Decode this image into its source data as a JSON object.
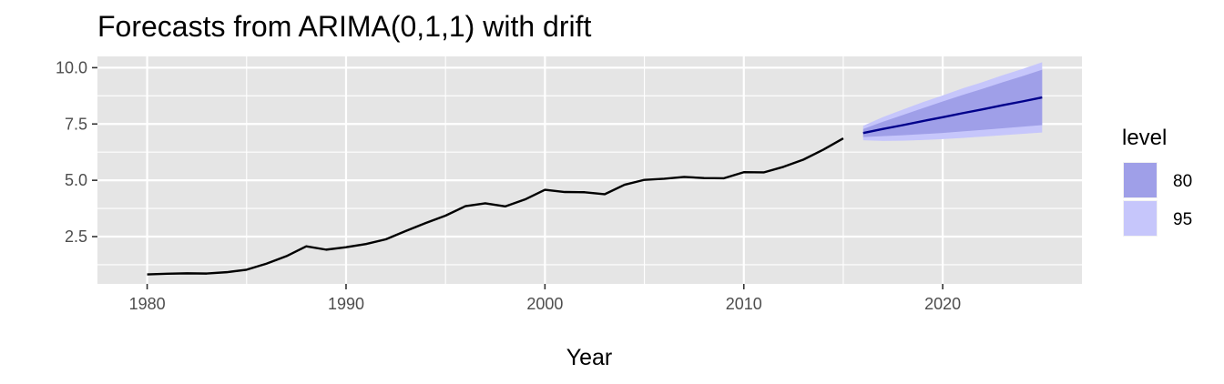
{
  "chart_data": {
    "type": "line",
    "title": "Forecasts from ARIMA(0,1,1) with drift",
    "xlabel": "Year",
    "ylabel": "",
    "xlim": [
      1977.5,
      2027.0
    ],
    "ylim": [
      0.4,
      10.5
    ],
    "x_ticks": [
      1980,
      1990,
      2000,
      2010,
      2020
    ],
    "x_tick_labels": [
      "1980",
      "1990",
      "2000",
      "2010",
      "2020"
    ],
    "y_ticks": [
      2.5,
      5.0,
      7.5,
      10.0
    ],
    "y_tick_labels": [
      "2.5",
      "5.0",
      "7.5",
      "10.0"
    ],
    "grid": true,
    "history": {
      "x": [
        1980,
        1981,
        1982,
        1983,
        1984,
        1985,
        1986,
        1987,
        1988,
        1989,
        1990,
        1991,
        1992,
        1993,
        1994,
        1995,
        1996,
        1997,
        1998,
        1999,
        2000,
        2001,
        2002,
        2003,
        2004,
        2005,
        2006,
        2007,
        2008,
        2009,
        2010,
        2011,
        2012,
        2013,
        2014,
        2015
      ],
      "y": [
        0.82,
        0.85,
        0.87,
        0.86,
        0.92,
        1.03,
        1.3,
        1.63,
        2.07,
        1.92,
        2.03,
        2.17,
        2.38,
        2.75,
        3.1,
        3.43,
        3.85,
        3.98,
        3.84,
        4.15,
        4.58,
        4.48,
        4.47,
        4.38,
        4.8,
        5.02,
        5.07,
        5.15,
        5.1,
        5.09,
        5.36,
        5.35,
        5.6,
        5.92,
        6.36,
        6.86
      ],
      "color": "#000000"
    },
    "forecast": {
      "x": [
        2016,
        2017,
        2018,
        2019,
        2020,
        2021,
        2022,
        2023,
        2024,
        2025
      ],
      "mean": [
        7.1,
        7.28,
        7.45,
        7.63,
        7.8,
        7.98,
        8.15,
        8.33,
        8.5,
        8.68
      ],
      "lo80": [
        6.92,
        6.96,
        7.0,
        7.05,
        7.1,
        7.17,
        7.24,
        7.31,
        7.38,
        7.45
      ],
      "hi80": [
        7.28,
        7.6,
        7.9,
        8.2,
        8.5,
        8.79,
        9.06,
        9.35,
        9.62,
        9.91
      ],
      "lo95": [
        6.78,
        6.75,
        6.76,
        6.79,
        6.83,
        6.88,
        6.94,
        7.0,
        7.06,
        7.12
      ],
      "hi95": [
        7.42,
        7.81,
        8.14,
        8.47,
        8.77,
        9.08,
        9.36,
        9.66,
        9.94,
        10.24
      ],
      "line_color": "#00008b"
    },
    "legend": {
      "title": "level",
      "position": "right",
      "items": [
        {
          "label": "80",
          "color": "#9f9fe8"
        },
        {
          "label": "95",
          "color": "#c6c6fb"
        }
      ]
    },
    "colors": {
      "panel": "#e5e5e5",
      "grid": "#ffffff",
      "band80": "#9f9fe8",
      "band95": "#c6c6fb"
    }
  }
}
